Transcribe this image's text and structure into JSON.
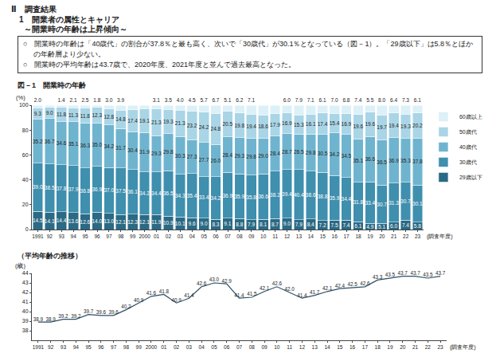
{
  "header": {
    "section": "Ⅱ　調査結果",
    "heading": "1　開業者の属性とキャリア",
    "subheading": "～開業時の年齢は上昇傾向～",
    "bullets": [
      "○　開業時の年齢は「40歳代」の割合が37.8％と最も高く、次いで「30歳代」が30.1％となっている（図－1）。「29歳以下」は5.8％とほかの年齢層より少ない。",
      "○　開業時の平均年齢は43.7歳で、2020年度、2021年度と並んで過去最高となった。"
    ]
  },
  "chart_data": [
    {
      "type": "bar",
      "title": "図－1　開業時の年齢",
      "y_label": "(%)",
      "x_label": "(調査年度)",
      "categories": [
        "1991",
        "92",
        "93",
        "94",
        "95",
        "96",
        "97",
        "98",
        "99",
        "2000",
        "01",
        "02",
        "03",
        "04",
        "05",
        "06",
        "07",
        "08",
        "09",
        "10",
        "11",
        "12",
        "13",
        "14",
        "15",
        "16",
        "17",
        "18",
        "19",
        "20",
        "21",
        "22",
        "23"
      ],
      "stacked": true,
      "data_labels": true,
      "legend": "right",
      "grid": false,
      "ylim": [
        0,
        100
      ],
      "yticks": [
        0,
        20,
        40,
        60,
        80,
        100
      ],
      "series": [
        {
          "name": "29歳以下",
          "color": "#2a6a85",
          "values": [
            14.5,
            14.1,
            14.4,
            13.6,
            12.6,
            14.0,
            13.0,
            12.1,
            12.3,
            12.1,
            11.9,
            10.9,
            10.1,
            9.6,
            9.0,
            8.3,
            9.1,
            8.8,
            7.9,
            8.1,
            8.7,
            9.0,
            7.9,
            8.4,
            7.2,
            7.5,
            7.4,
            6.1,
            4.9,
            5.1,
            6.0,
            7.4,
            5.8
          ]
        },
        {
          "name": "30歳代",
          "color": "#3f8fae",
          "values": [
            39.0,
            38.5,
            37.8,
            37.9,
            36.8,
            36.9,
            37.0,
            37.5,
            36.1,
            34.2,
            34.4,
            36.5,
            34.3,
            35.4,
            33.4,
            34.2,
            36.9,
            35.9,
            35.8,
            36.6,
            38.2,
            39.4,
            40.4,
            38.6,
            38.8,
            35.9,
            34.4,
            31.8,
            33.4,
            30.7,
            31.3,
            30.7,
            30.1
          ]
        },
        {
          "name": "40歳代",
          "color": "#6fb4cf",
          "values": [
            35.2,
            36.7,
            34.6,
            35.1,
            36.3,
            35.0,
            34.2,
            31.7,
            30.4,
            31.9,
            29.3,
            29.8,
            30.3,
            27.3,
            27.7,
            26.0,
            28.4,
            29.3,
            29.8,
            29.0,
            28.4,
            28.7,
            28.5,
            29.8,
            30.5,
            34.2,
            34.5,
            35.1,
            36.6,
            36.5,
            36.9,
            35.3,
            37.8
          ]
        },
        {
          "name": "50歳代",
          "color": "#a9d5e6",
          "values": [
            9.3,
            9.0,
            11.8,
            11.3,
            11.8,
            12.3,
            12.8,
            14.8,
            17.4,
            19.1,
            21.3,
            19.3,
            21.3,
            23.2,
            24.2,
            24.8,
            20.5,
            19.8,
            19.4,
            18.6,
            17.9,
            16.9,
            15.3,
            16.1,
            17.4,
            15.4,
            16.9,
            19.6,
            19.6,
            19.7,
            19.4,
            19.3,
            20.2
          ]
        },
        {
          "name": "60歳以上",
          "color": "#dcf0f7",
          "values": [
            2.0,
            1.7,
            1.4,
            2.1,
            2.5,
            1.8,
            3.0,
            3.9,
            3.8,
            2.7,
            3.1,
            3.5,
            4.0,
            4.5,
            5.7,
            6.7,
            5.1,
            6.2,
            7.1,
            7.7,
            6.8,
            6.0,
            7.9,
            7.1,
            6.1,
            7.0,
            6.8,
            7.4,
            5.5,
            8.0,
            6.4,
            7.3,
            6.1
          ]
        }
      ]
    },
    {
      "type": "line",
      "title": "（平均年齢の推移）",
      "y_label": "(歳)",
      "x_label": "(調査年度)",
      "categories": [
        "1991",
        "92",
        "93",
        "94",
        "95",
        "96",
        "97",
        "98",
        "99",
        "2000",
        "01",
        "02",
        "03",
        "04",
        "05",
        "06",
        "07",
        "08",
        "09",
        "10",
        "11",
        "12",
        "13",
        "14",
        "15",
        "16",
        "17",
        "18",
        "19",
        "20",
        "21",
        "22",
        "23"
      ],
      "data_labels": true,
      "grid": false,
      "color": "#2b4f66",
      "ylim": [
        37,
        44
      ],
      "yticks": [
        38,
        39,
        40,
        41,
        42,
        43,
        44
      ],
      "values": [
        38.9,
        38.9,
        39.2,
        39.2,
        39.7,
        39.6,
        39.6,
        40.2,
        40.9,
        41.6,
        41.8,
        40.9,
        41.4,
        42.6,
        43.0,
        42.9,
        41.4,
        41.5,
        42.1,
        42.6,
        42.0,
        41.4,
        41.7,
        42.1,
        42.4,
        42.5,
        42.6,
        43.3,
        43.5,
        43.7,
        43.7,
        43.5,
        43.7
      ]
    }
  ]
}
